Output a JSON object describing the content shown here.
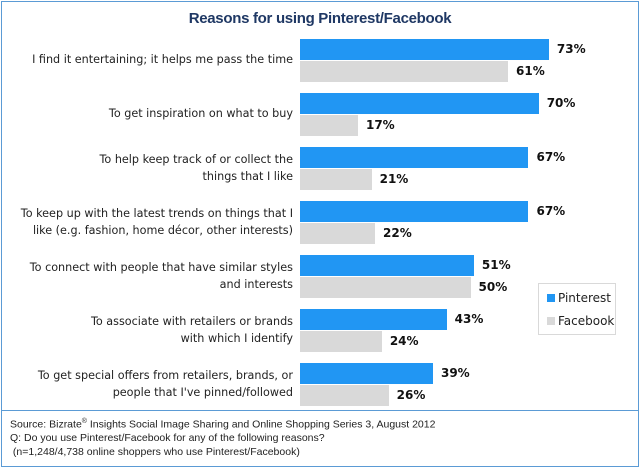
{
  "title": "Reasons for using Pinterest/Facebook",
  "legend": {
    "pinterest": "Pinterest",
    "facebook": "Facebook"
  },
  "colors": {
    "pinterest": "#2196f3",
    "facebook": "#d9d9d9",
    "border": "#5b9bd5",
    "title": "#1f3864"
  },
  "footer": {
    "line1_pre": "Source: Bizrate",
    "line1_sup": "®",
    "line1_post": " Insights Social Image Sharing and Online Shopping Series 3, August 2012",
    "line2": "Q: Do you use Pinterest/Facebook for any of the following reasons?",
    "line3": " (n=1,248/4,738 online shoppers who use Pinterest/Facebook)"
  },
  "chart_data": {
    "type": "bar",
    "orientation": "horizontal",
    "title": "Reasons for using Pinterest/Facebook",
    "xlabel": "",
    "ylabel": "",
    "categories": [
      "I find it entertaining; it helps me pass the time",
      "To get inspiration on what to buy",
      "To help keep track of or collect the things that I like",
      "To keep up with the latest trends on things that I like (e.g. fashion, home décor, other interests)",
      "To connect with people that have similar styles and interests",
      "To associate with retailers or brands with which I identify",
      "To get special offers from retailers, brands, or people that I've pinned/followed"
    ],
    "series": [
      {
        "name": "Pinterest",
        "values": [
          73,
          70,
          67,
          67,
          51,
          43,
          39
        ]
      },
      {
        "name": "Facebook",
        "values": [
          61,
          17,
          21,
          22,
          50,
          24,
          26
        ]
      }
    ],
    "value_labels": true,
    "units": "%",
    "legend_position": "right",
    "grid": false
  },
  "rows": [
    {
      "l1": "I find it entertaining; it helps me pass the time",
      "l2": "",
      "p": "73%",
      "f": "61%"
    },
    {
      "l1": "To get inspiration on what to buy",
      "l2": "",
      "p": "70%",
      "f": "17%"
    },
    {
      "l1": "To help keep track of or collect the",
      "l2": "things that I like",
      "p": "67%",
      "f": "21%"
    },
    {
      "l1": "To keep up with the latest trends on things that I",
      "l2": "like (e.g. fashion, home décor, other interests)",
      "p": "67%",
      "f": "22%"
    },
    {
      "l1": "To connect with people that have similar styles",
      "l2": "and interests",
      "p": "51%",
      "f": "50%"
    },
    {
      "l1": "To associate with retailers or brands",
      "l2": "with which I identify",
      "p": "43%",
      "f": "24%"
    },
    {
      "l1": "To get special offers from retailers, brands, or",
      "l2": "people that I've pinned/followed",
      "p": "39%",
      "f": "26%"
    }
  ]
}
